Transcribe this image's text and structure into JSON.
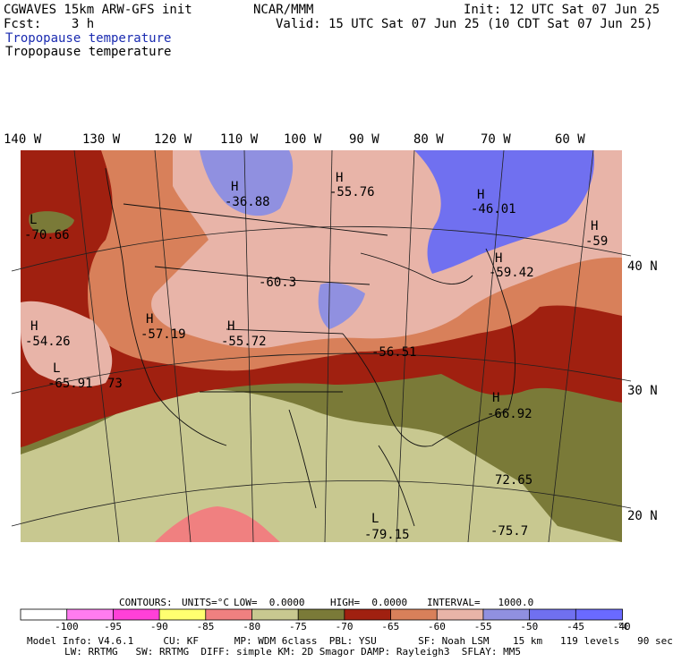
{
  "header": {
    "model": "CGWAVES 15km ARW-GFS init",
    "fcst": "Fcst:    3 h",
    "org": "NCAR/MMM",
    "init": "Init: 12 UTC Sat 07 Jun 25",
    "valid": "Valid: 15 UTC Sat 07 Jun 25 (10 CDT Sat 07 Jun 25)",
    "field_title": "Tropopause temperature",
    "field_subtitle": "Tropopause temperature",
    "title_color": "#1a2bb0"
  },
  "axes": {
    "lon_labels": [
      "140 W",
      "130 W",
      "120 W",
      "110 W",
      "100 W",
      "90 W",
      "80 W",
      "70 W",
      "60 W"
    ],
    "lat_labels": [
      "40 N",
      "30 N",
      "20 N"
    ]
  },
  "extrema": [
    {
      "type": "H",
      "value": "-36.88"
    },
    {
      "type": "H",
      "value": "-55.76"
    },
    {
      "type": "H",
      "value": "-46.01"
    },
    {
      "type": "L",
      "value": "-70.66"
    },
    {
      "type": "H",
      "value": "-59"
    },
    {
      "type": "H",
      "value": "-59.42"
    },
    {
      "type": "",
      "value": "-60.3"
    },
    {
      "type": "H",
      "value": "-54.26"
    },
    {
      "type": "H",
      "value": "-57.19"
    },
    {
      "type": "H",
      "value": "-55.72"
    },
    {
      "type": "",
      "value": "-56.51"
    },
    {
      "type": "L",
      "value": "-65.91"
    },
    {
      "type": "",
      "value": "73"
    },
    {
      "type": "H",
      "value": "-66.92"
    },
    {
      "type": "",
      "value": "72.65"
    },
    {
      "type": "L",
      "value": "-79.15"
    },
    {
      "type": "",
      "value": "-75.7"
    }
  ],
  "contours": {
    "label": "CONTOURS:",
    "units": "UNITS=°C",
    "low": "LOW=  0.0000",
    "high": "HIGH=  0.0000",
    "interval": "INTERVAL=   1000.0"
  },
  "legend": {
    "colors": [
      "#ffffff",
      "#ff7cf0",
      "#ff40d8",
      "#ffff70",
      "#f08080",
      "#c8c890",
      "#7a7a38",
      "#a02010",
      "#d8805a",
      "#e8b4a8",
      "#9090e0",
      "#7070f0",
      "#6a6aff"
    ],
    "ticks": [
      "-100",
      "-95",
      "-90",
      "-85",
      "-80",
      "-75",
      "-70",
      "-65",
      "-60",
      "-55",
      "-50",
      "-45",
      "-40"
    ],
    "unit": "°C"
  },
  "footer": {
    "line1": "Model Info: V4.6.1     CU: KF      MP: WDM 6class  PBL: YSU       SF: Noah LSM    15 km   119 levels   90 sec",
    "line2": "LW: RRTMG   SW: RRTMG  DIFF: simple KM: 2D Smagor DAMP: Rayleigh3  SFLAY: MM5"
  }
}
